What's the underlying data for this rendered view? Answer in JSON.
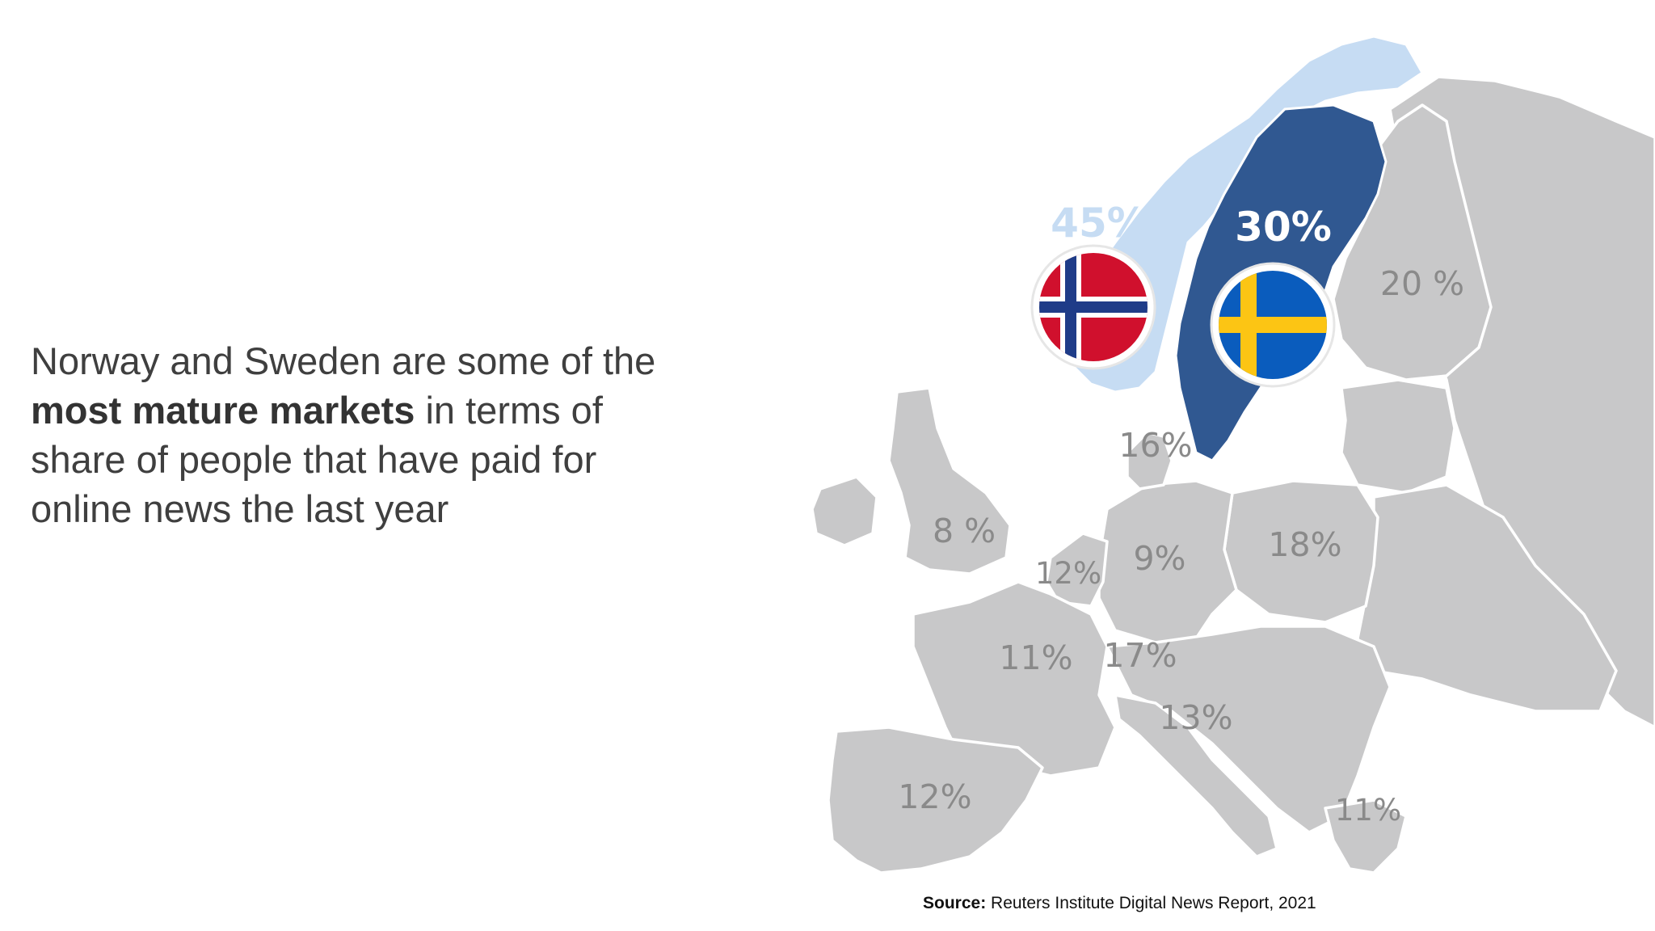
{
  "headline": {
    "part1": "Norway and Sweden are some of the ",
    "bold": "most mature markets",
    "part2": " in terms of share of people that have paid for online news the last year"
  },
  "source": {
    "label": "Source:",
    "text": " Reuters Institute Digital News Report, 2021"
  },
  "colors": {
    "land": "#c8c8c9",
    "norway": "#c6dcf3",
    "sweden": "#305891",
    "label_gray": "#8a8a8a",
    "norway_flag_red": "#d0102d",
    "norway_flag_blue": "#1f3c88",
    "sweden_flag_blue": "#0a5cbd",
    "sweden_flag_yellow": "#fcc514"
  },
  "map": {
    "highlight": {
      "norway": {
        "value": "45%",
        "flag_icon": "norway-flag-icon"
      },
      "sweden": {
        "value": "30%",
        "flag_icon": "sweden-flag-icon"
      }
    },
    "labels": {
      "finland": "20 %",
      "denmark": "16%",
      "uk": "8 %",
      "poland": "18%",
      "germany": "9%",
      "belgium": "12%",
      "france": "11%",
      "switzerland": "17%",
      "italy": "13%",
      "spain": "12%",
      "greece": "11%"
    }
  }
}
